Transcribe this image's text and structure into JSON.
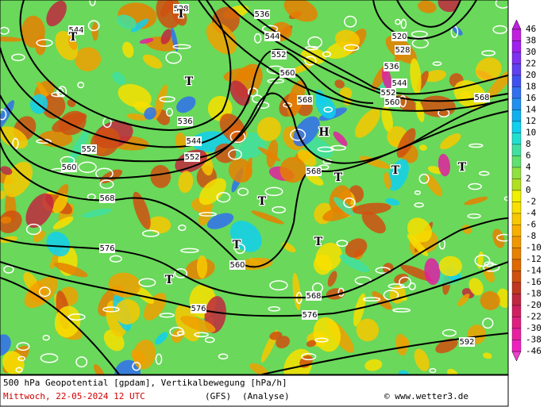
{
  "title": "500 hPa Geopotential [gpdam], Vertikalbewegung [hPa/h]",
  "date": "Mittwoch, 22-05-2024  12 UTC",
  "model": "(GFS)",
  "run": "(Analyse)",
  "source": "© www.wetter3.de",
  "colorbar": {
    "levels": [
      46,
      38,
      30,
      22,
      20,
      18,
      16,
      14,
      12,
      10,
      8,
      6,
      4,
      2,
      0,
      -2,
      -4,
      -6,
      -8,
      -10,
      -12,
      -14,
      -16,
      -18,
      -20,
      -22,
      -30,
      -38,
      -46
    ],
    "colors": [
      "#c020e0",
      "#a020f0",
      "#8030f0",
      "#6040f0",
      "#4050f0",
      "#3070f0",
      "#2090f0",
      "#10b0f0",
      "#10d0f0",
      "#20e0d0",
      "#40e0a0",
      "#60e070",
      "#90e040",
      "#b0e020",
      "#f0f000",
      "#f8e000",
      "#f8c800",
      "#f8b000",
      "#f09800",
      "#e88000",
      "#e06800",
      "#d05010",
      "#c03820",
      "#c02840",
      "#d02060",
      "#e02080",
      "#e820a0",
      "#f020c0",
      "#f040d0"
    ]
  },
  "contour_labels": [
    520,
    528,
    528,
    536,
    536,
    536,
    544,
    544,
    544,
    544,
    552,
    552,
    552,
    552,
    560,
    560,
    560,
    560,
    568,
    568,
    568,
    568,
    568,
    576,
    576,
    576,
    592
  ],
  "pressure_systems": [
    "T",
    "T",
    "T",
    "T",
    "T",
    "T",
    "T",
    "T",
    "T",
    "T",
    "H"
  ]
}
